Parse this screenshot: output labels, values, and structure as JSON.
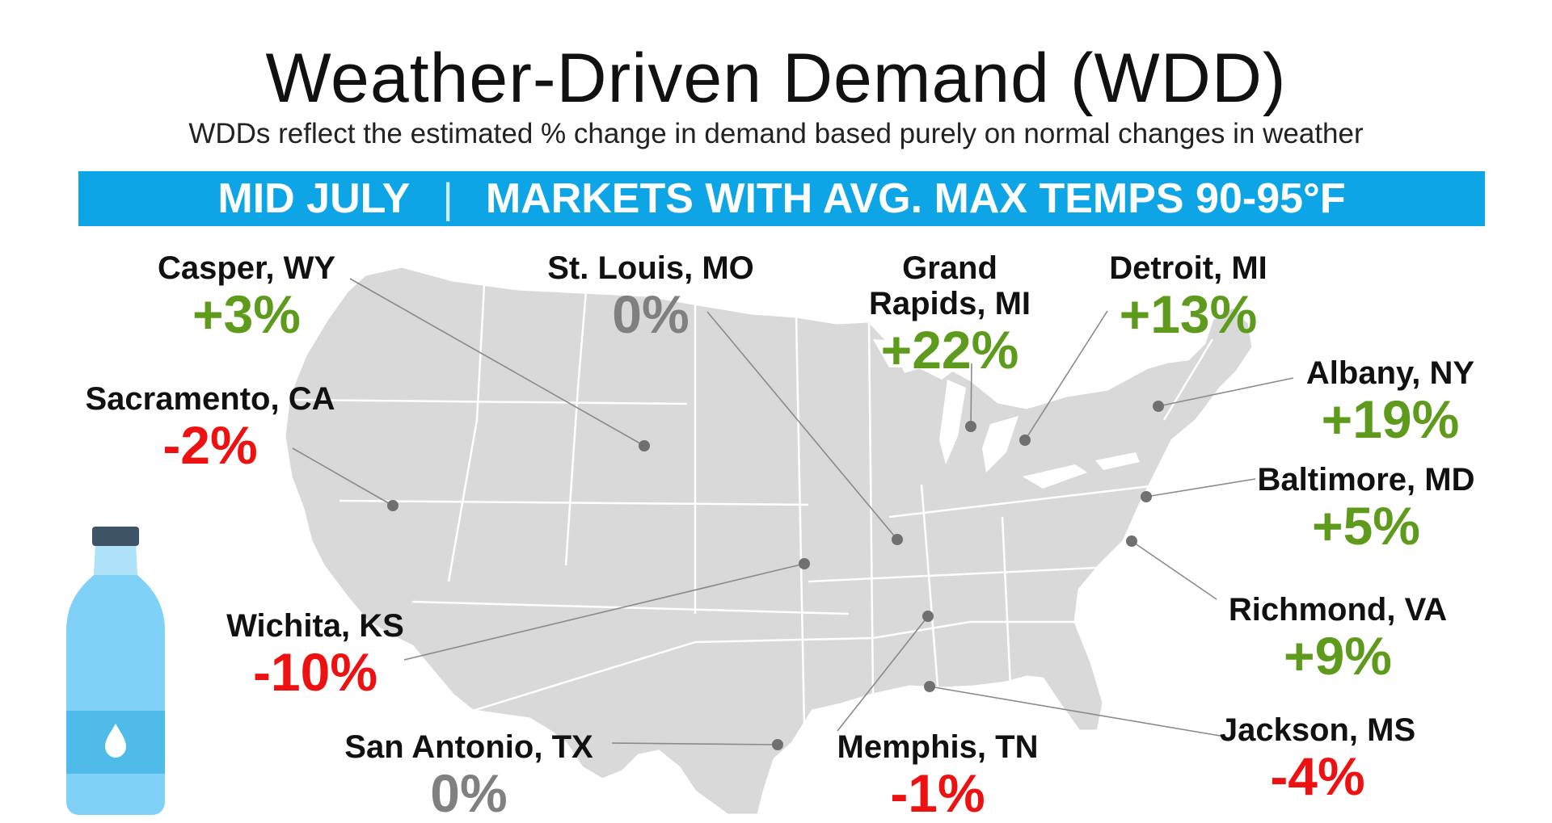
{
  "title": "Weather-Driven Demand (WDD)",
  "subtitle": "WDDs reflect the estimated % change in demand based purely on normal changes in weather",
  "banner": {
    "period": "MID JULY",
    "separator": "|",
    "criteria": "MARKETS WITH AVG. MAX TEMPS 90-95°F"
  },
  "colors": {
    "positive": "#5e9b1d",
    "negative": "#ee1111",
    "neutral": "#808080",
    "banner": "#0ea5e6",
    "map_fill": "#d9d9d9",
    "bottle_body": "#7fd1f7",
    "bottle_label": "#4fbbe9",
    "bottle_cap": "#3d5467"
  },
  "icons": [
    "water-bottle-icon",
    "water-drop-icon"
  ],
  "markets": [
    {
      "city": "Casper, WY",
      "change": "+3%",
      "trend": "pos"
    },
    {
      "city": "St. Louis, MO",
      "change": "0%",
      "trend": "zero"
    },
    {
      "city": "Grand Rapids, MI",
      "change": "+22%",
      "trend": "pos"
    },
    {
      "city": "Detroit, MI",
      "change": "+13%",
      "trend": "pos"
    },
    {
      "city": "Albany, NY",
      "change": "+19%",
      "trend": "pos"
    },
    {
      "city": "Sacramento, CA",
      "change": "-2%",
      "trend": "neg"
    },
    {
      "city": "Baltimore, MD",
      "change": "+5%",
      "trend": "pos"
    },
    {
      "city": "Richmond, VA",
      "change": "+9%",
      "trend": "pos"
    },
    {
      "city": "Wichita, KS",
      "change": "-10%",
      "trend": "neg"
    },
    {
      "city": "San Antonio, TX",
      "change": "0%",
      "trend": "zero"
    },
    {
      "city": "Memphis, TN",
      "change": "-1%",
      "trend": "neg"
    },
    {
      "city": "Jackson, MS",
      "change": "-4%",
      "trend": "neg"
    }
  ]
}
